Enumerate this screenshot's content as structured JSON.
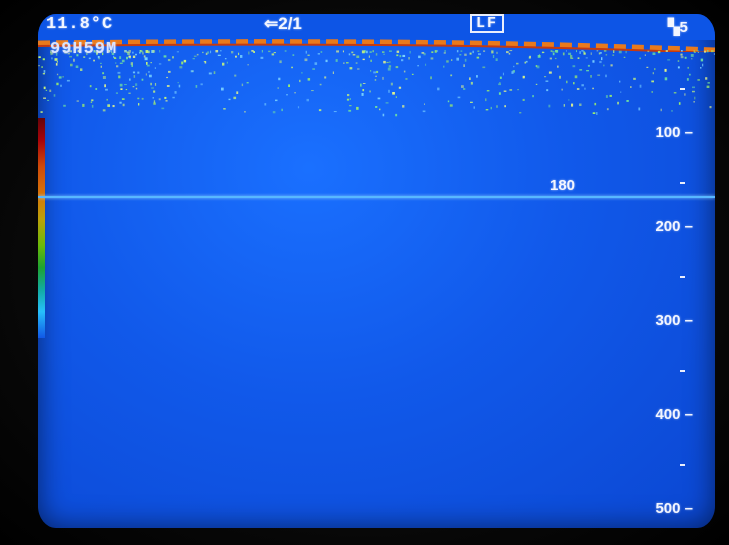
{
  "status": {
    "water_temp": "11.8°C",
    "mode": "⇐2/1",
    "frequency": "LF",
    "gain": "5",
    "timer": "99H59M"
  },
  "depth_line": {
    "value": "180"
  },
  "depth_scale": {
    "labels": [
      "100 –",
      "200 –",
      "300 –",
      "400 –",
      "500 –"
    ],
    "minor_ticks": 5
  },
  "colors": {
    "water": "#1159ea",
    "depth_line": "#58b8ff",
    "seabed_orange": "#e97a1c",
    "echo_green": "#9ef06a"
  }
}
